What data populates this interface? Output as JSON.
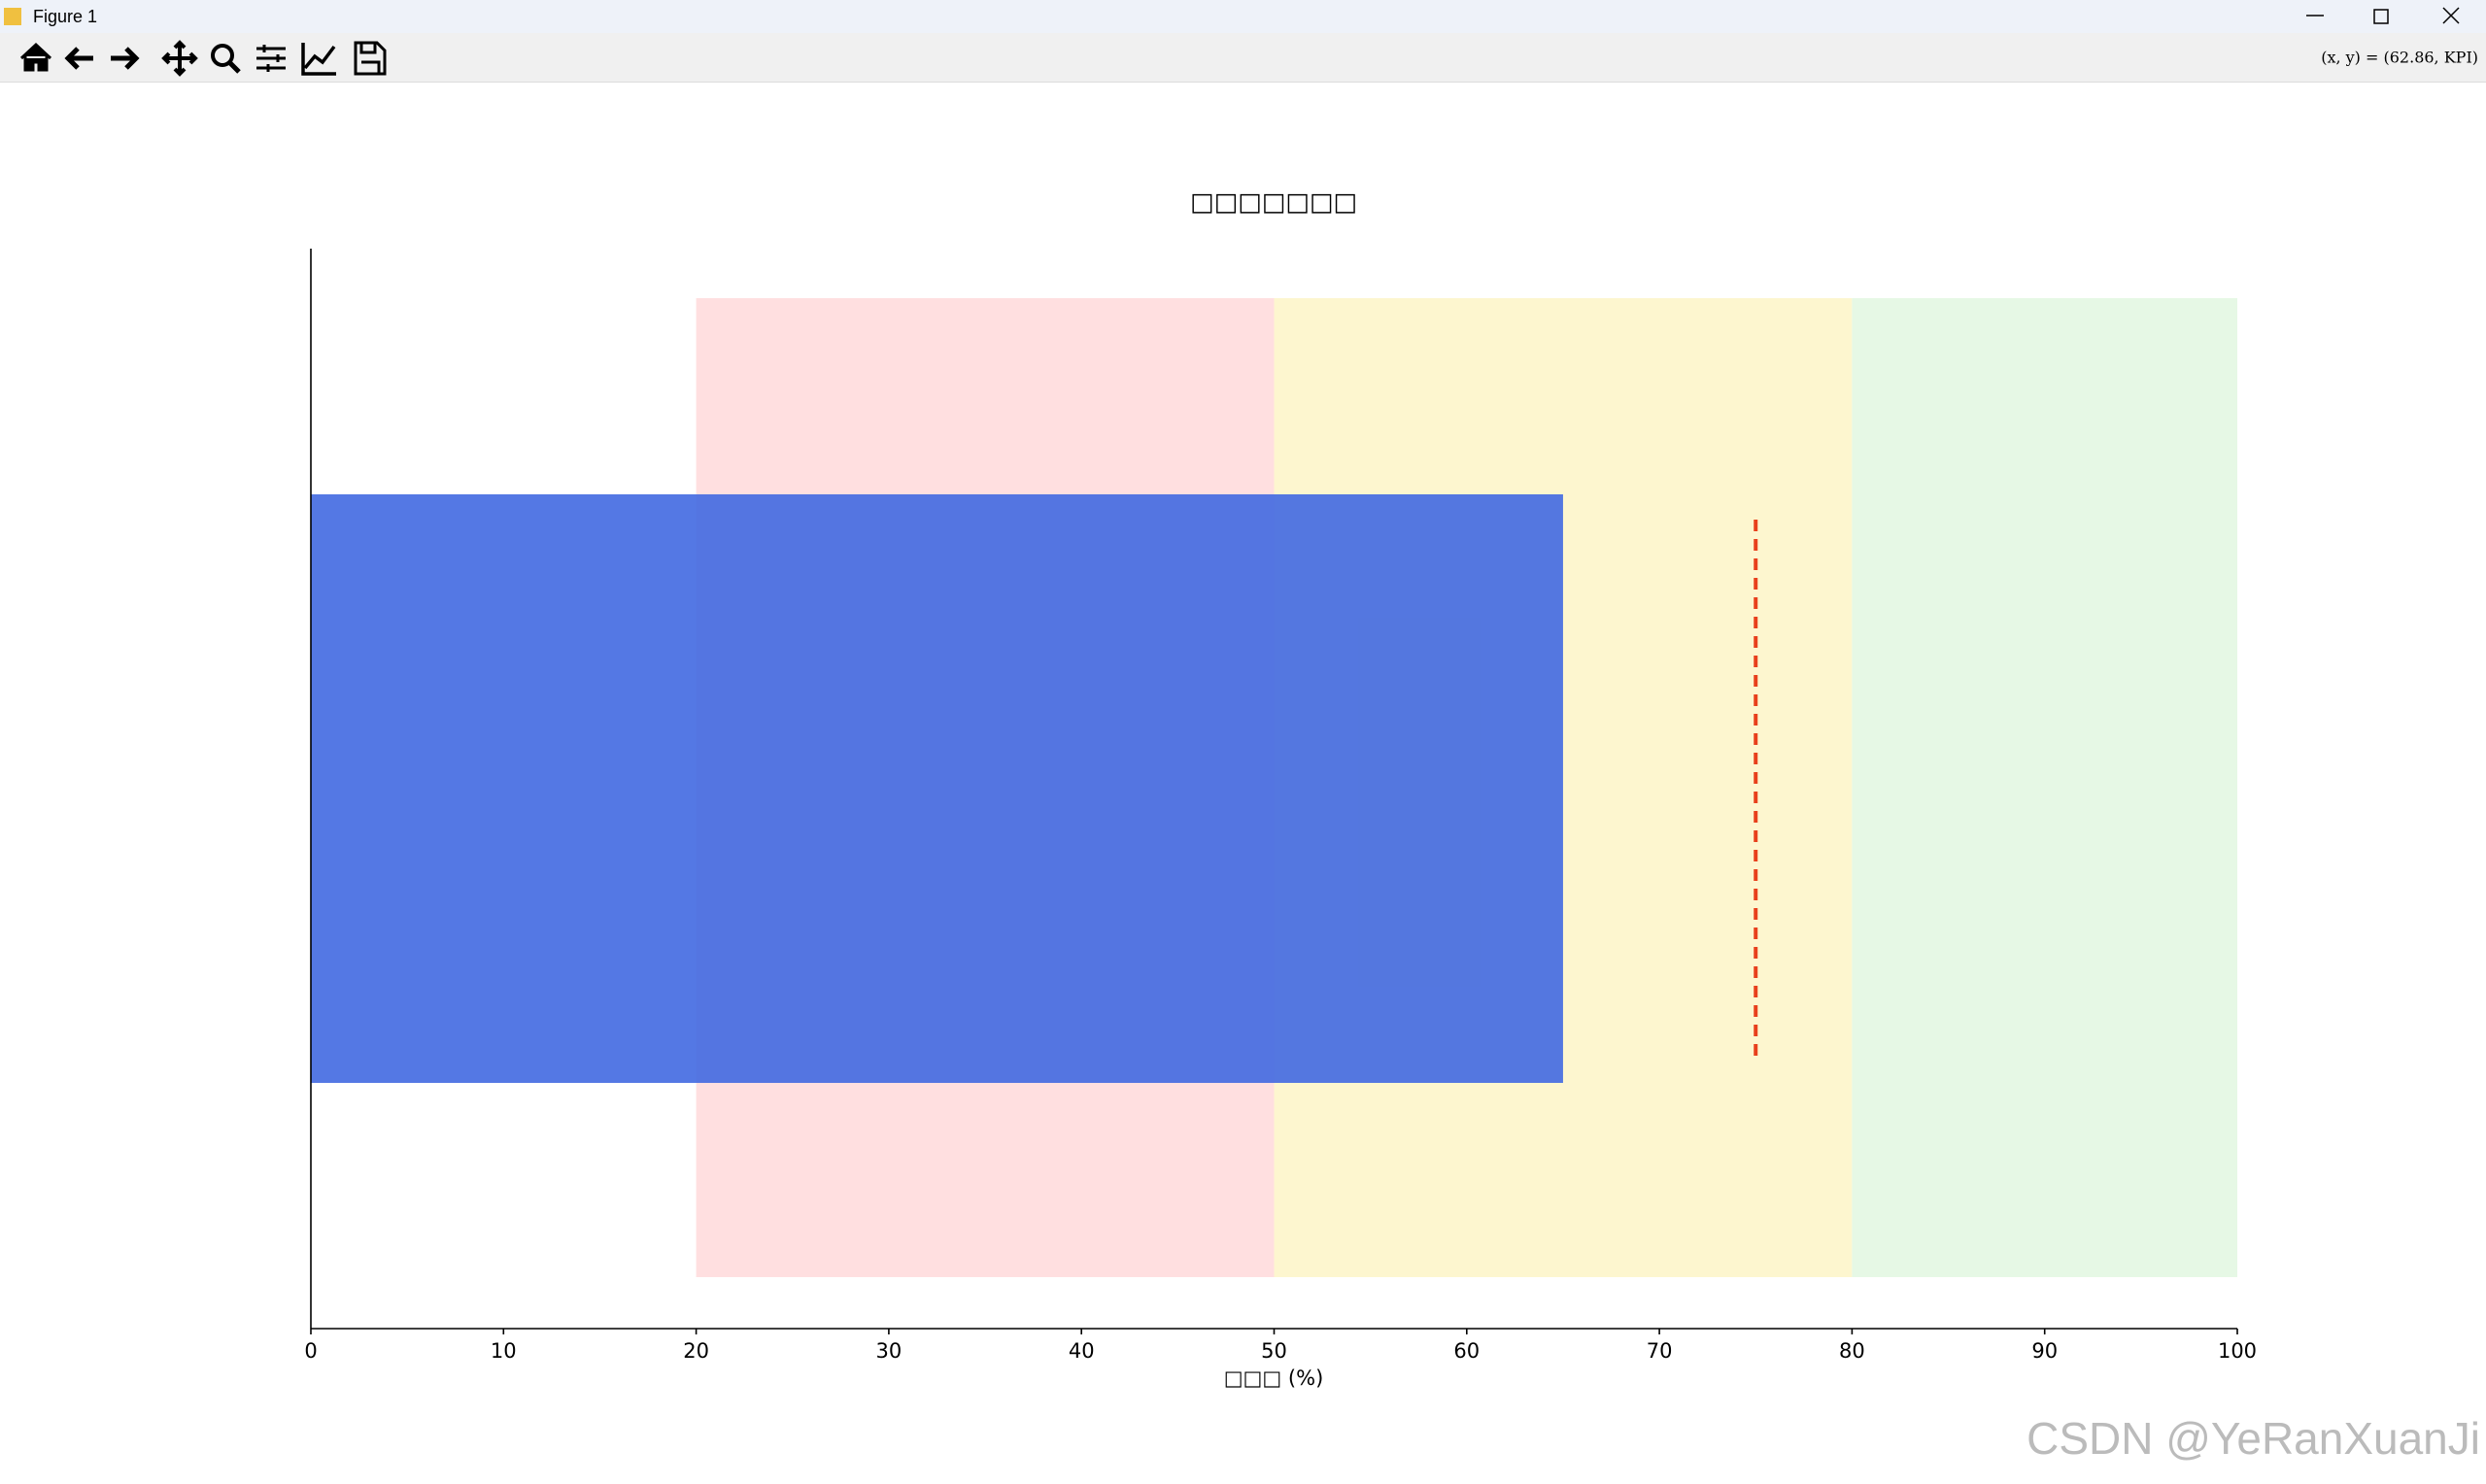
{
  "window": {
    "title": "Figure 1",
    "status": "(x, y) = (62.86, KPI)"
  },
  "chart_data": {
    "type": "bullet",
    "title": "□□□□□□□",
    "x_label": "□□□ (%)",
    "xlim": [
      0,
      100
    ],
    "xticks": [
      0,
      10,
      20,
      30,
      40,
      50,
      60,
      70,
      80,
      90,
      100
    ],
    "ranges": [
      {
        "start": 20,
        "end": 50,
        "color": "#ffdfe0"
      },
      {
        "start": 50,
        "end": 80,
        "color": "#fdf6cf"
      },
      {
        "start": 80,
        "end": 100,
        "color": "#e6f8e5"
      }
    ],
    "value": 65,
    "color": "#4169e1",
    "target": 75,
    "target_color": "#e8401c"
  },
  "watermark": "CSDN @YeRanXuanJi"
}
